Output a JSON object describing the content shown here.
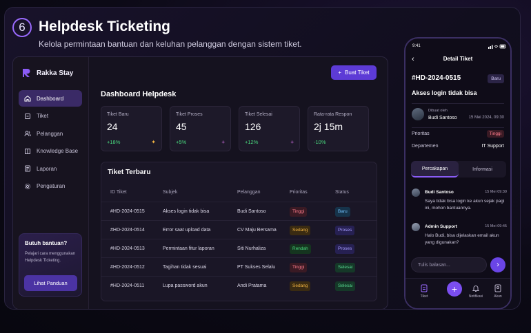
{
  "header": {
    "step_number": "6",
    "title": "Helpdesk Ticketing",
    "subtitle": "Kelola permintaan bantuan dan keluhan pelanggan dengan sistem tiket."
  },
  "colors": {
    "accent": "#5d3bd6",
    "positive": "#4ade80",
    "danger": "#ff7b8b",
    "warning": "#f5b642"
  },
  "sidebar": {
    "brand": "Rakka Stay",
    "items": [
      {
        "label": "Dashboard",
        "icon": "home-icon",
        "active": true
      },
      {
        "label": "Tiket",
        "icon": "ticket-icon"
      },
      {
        "label": "Pelanggan",
        "icon": "users-icon"
      },
      {
        "label": "Knowledge Base",
        "icon": "book-icon"
      },
      {
        "label": "Laporan",
        "icon": "report-icon"
      },
      {
        "label": "Pengaturan",
        "icon": "gear-icon"
      }
    ],
    "help": {
      "title": "Butuh bantuan?",
      "description": "Pelajari cara menggunakan Helpdesk Ticketing.",
      "button": "Lihat Panduan"
    }
  },
  "main": {
    "create_button": "Buat Tiket",
    "title": "Dashboard Helpdesk",
    "stats": [
      {
        "label": "Tiket Baru",
        "value": "24",
        "change": "+18%"
      },
      {
        "label": "Tiket Proses",
        "value": "45",
        "change": "+5%"
      },
      {
        "label": "Tiket Selesai",
        "value": "126",
        "change": "+12%"
      },
      {
        "label": "Rata-rata Respon",
        "value": "2j 15m",
        "change": "-10%"
      }
    ],
    "tickets": {
      "title": "Tiket Terbaru",
      "columns": [
        "ID Tiket",
        "Subjek",
        "Pelanggan",
        "Prioritas",
        "Status"
      ],
      "rows": [
        {
          "id": "#HD-2024-0515",
          "subject": "Akses login tidak bisa",
          "customer": "Budi Santoso",
          "priority": "Tinggi",
          "status": "Baru"
        },
        {
          "id": "#HD-2024-0514",
          "subject": "Error saat upload data",
          "customer": "CV Maju Bersama",
          "priority": "Sedang",
          "status": "Proses"
        },
        {
          "id": "#HD-2024-0513",
          "subject": "Permintaan fitur laporan",
          "customer": "Siti Nurhaliza",
          "priority": "Rendah",
          "status": "Proses"
        },
        {
          "id": "#HD-2024-0512",
          "subject": "Tagihan tidak sesuai",
          "customer": "PT Sukses Selalu",
          "priority": "Tinggi",
          "status": "Selesai"
        },
        {
          "id": "#HD-2024-0511",
          "subject": "Lupa password akun",
          "customer": "Andi Pratama",
          "priority": "Sedang",
          "status": "Selesai"
        }
      ]
    }
  },
  "phone": {
    "time": "9:41",
    "title": "Detail Tiket",
    "ticket_id": "#HD-2024-0515",
    "status": "Baru",
    "subject": "Akses login tidak bisa",
    "created_label": "Dibuat oleh",
    "author": "Budi Santoso",
    "created_date": "15 Mei 2024, 09:30",
    "priority_label": "Prioritas",
    "priority_value": "Tinggi",
    "department_label": "Departemen",
    "department_value": "IT Support",
    "tabs": [
      "Percakapan",
      "Informasi"
    ],
    "messages": [
      {
        "name": "Budi Santoso",
        "time": "15 Mei 09:30",
        "text": "Saya tidak bisa login ke akun sejak pagi ini, mohon bantuannya."
      },
      {
        "name": "Admin Support",
        "time": "15 Mei 09:45",
        "text": "Halo Budi, bisa dijelaskan email akun yang digunakan?"
      }
    ],
    "input_placeholder": "Tulis balasan...",
    "nav": [
      {
        "label": "Tiket",
        "icon": "ticket-icon"
      },
      {
        "label": "Notifikasi",
        "icon": "bell-icon"
      },
      {
        "label": "Akun",
        "icon": "user-icon"
      }
    ]
  }
}
